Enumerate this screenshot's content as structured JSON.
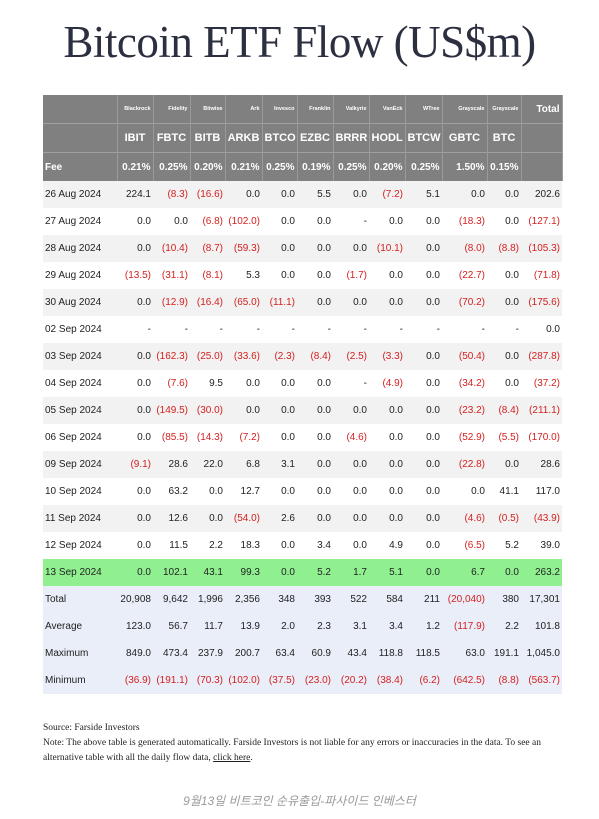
{
  "header": {
    "title": "Bitcoin ETF Flow (US$m)"
  },
  "table": {
    "issuers": [
      "Blackrock",
      "Fidelity",
      "Bitwise",
      "Ark",
      "Invesco",
      "Franklin",
      "Valkyrie",
      "VanEck",
      "WTree",
      "Grayscale",
      "Grayscale",
      "Total"
    ],
    "tickers": [
      "IBIT",
      "FBTC",
      "BITB",
      "ARKB",
      "BTCO",
      "EZBC",
      "BRRR",
      "HODL",
      "BTCW",
      "GBTC",
      "BTC"
    ],
    "fee_label": "Fee",
    "fees": [
      "0.21%",
      "0.25%",
      "0.20%",
      "0.21%",
      "0.25%",
      "0.19%",
      "0.25%",
      "0.20%",
      "0.25%",
      "1.50%",
      "0.15%"
    ],
    "rows": [
      [
        "26 Aug 2024",
        "224.1",
        "(8.3)",
        "(16.6)",
        "0.0",
        "0.0",
        "5.5",
        "0.0",
        "(7.2)",
        "5.1",
        "0.0",
        "0.0",
        "202.6"
      ],
      [
        "27 Aug 2024",
        "0.0",
        "0.0",
        "(6.8)",
        "(102.0)",
        "0.0",
        "0.0",
        "-",
        "0.0",
        "0.0",
        "(18.3)",
        "0.0",
        "(127.1)"
      ],
      [
        "28 Aug 2024",
        "0.0",
        "(10.4)",
        "(8.7)",
        "(59.3)",
        "0.0",
        "0.0",
        "0.0",
        "(10.1)",
        "0.0",
        "(8.0)",
        "(8.8)",
        "(105.3)"
      ],
      [
        "29 Aug 2024",
        "(13.5)",
        "(31.1)",
        "(8.1)",
        "5.3",
        "0.0",
        "0.0",
        "(1.7)",
        "0.0",
        "0.0",
        "(22.7)",
        "0.0",
        "(71.8)"
      ],
      [
        "30 Aug 2024",
        "0.0",
        "(12.9)",
        "(16.4)",
        "(65.0)",
        "(11.1)",
        "0.0",
        "0.0",
        "0.0",
        "0.0",
        "(70.2)",
        "0.0",
        "(175.6)"
      ],
      [
        "02 Sep 2024",
        "-",
        "-",
        "-",
        "-",
        "-",
        "-",
        "-",
        "-",
        "-",
        "-",
        "-",
        "0.0"
      ],
      [
        "03 Sep 2024",
        "0.0",
        "(162.3)",
        "(25.0)",
        "(33.6)",
        "(2.3)",
        "(8.4)",
        "(2.5)",
        "(3.3)",
        "0.0",
        "(50.4)",
        "0.0",
        "(287.8)"
      ],
      [
        "04 Sep 2024",
        "0.0",
        "(7.6)",
        "9.5",
        "0.0",
        "0.0",
        "0.0",
        "-",
        "(4.9)",
        "0.0",
        "(34.2)",
        "0.0",
        "(37.2)"
      ],
      [
        "05 Sep 2024",
        "0.0",
        "(149.5)",
        "(30.0)",
        "0.0",
        "0.0",
        "0.0",
        "0.0",
        "0.0",
        "0.0",
        "(23.2)",
        "(8.4)",
        "(211.1)"
      ],
      [
        "06 Sep 2024",
        "0.0",
        "(85.5)",
        "(14.3)",
        "(7.2)",
        "0.0",
        "0.0",
        "(4.6)",
        "0.0",
        "0.0",
        "(52.9)",
        "(5.5)",
        "(170.0)"
      ],
      [
        "09 Sep 2024",
        "(9.1)",
        "28.6",
        "22.0",
        "6.8",
        "3.1",
        "0.0",
        "0.0",
        "0.0",
        "0.0",
        "(22.8)",
        "0.0",
        "28.6"
      ],
      [
        "10 Sep 2024",
        "0.0",
        "63.2",
        "0.0",
        "12.7",
        "0.0",
        "0.0",
        "0.0",
        "0.0",
        "0.0",
        "0.0",
        "41.1",
        "117.0"
      ],
      [
        "11 Sep 2024",
        "0.0",
        "12.6",
        "0.0",
        "(54.0)",
        "2.6",
        "0.0",
        "0.0",
        "0.0",
        "0.0",
        "(4.6)",
        "(0.5)",
        "(43.9)"
      ],
      [
        "12 Sep 2024",
        "0.0",
        "11.5",
        "2.2",
        "18.3",
        "0.0",
        "3.4",
        "0.0",
        "4.9",
        "0.0",
        "(6.5)",
        "5.2",
        "39.0"
      ],
      [
        "13 Sep 2024",
        "0.0",
        "102.1",
        "43.1",
        "99.3",
        "0.0",
        "5.2",
        "1.7",
        "5.1",
        "0.0",
        "6.7",
        "0.0",
        "263.2"
      ]
    ],
    "highlight_row": 14,
    "summary": [
      [
        "Total",
        "20,908",
        "9,642",
        "1,996",
        "2,356",
        "348",
        "393",
        "522",
        "584",
        "211",
        "(20,040)",
        "380",
        "17,301"
      ],
      [
        "Average",
        "123.0",
        "56.7",
        "11.7",
        "13.9",
        "2.0",
        "2.3",
        "3.1",
        "3.4",
        "1.2",
        "(117.9)",
        "2.2",
        "101.8"
      ],
      [
        "Maximum",
        "849.0",
        "473.4",
        "237.9",
        "200.7",
        "63.4",
        "60.9",
        "43.4",
        "118.8",
        "118.5",
        "63.0",
        "191.1",
        "1,045.0"
      ],
      [
        "Minimum",
        "(36.9)",
        "(191.1)",
        "(70.3)",
        "(102.0)",
        "(37.5)",
        "(23.0)",
        "(20.2)",
        "(38.4)",
        "(6.2)",
        "(642.5)",
        "(8.8)",
        "(563.7)"
      ]
    ]
  },
  "notes": {
    "source": "Source: Farside Investors",
    "note": "Note: The above table is generated automatically. Farside Investors is not liable for any errors or inaccuracies in the data. To see an alternative table with all the daily flow data, ",
    "link": "click here",
    "end": "."
  },
  "caption": "9월13일 비트코인 순유출입-파사이드 인베스터"
}
